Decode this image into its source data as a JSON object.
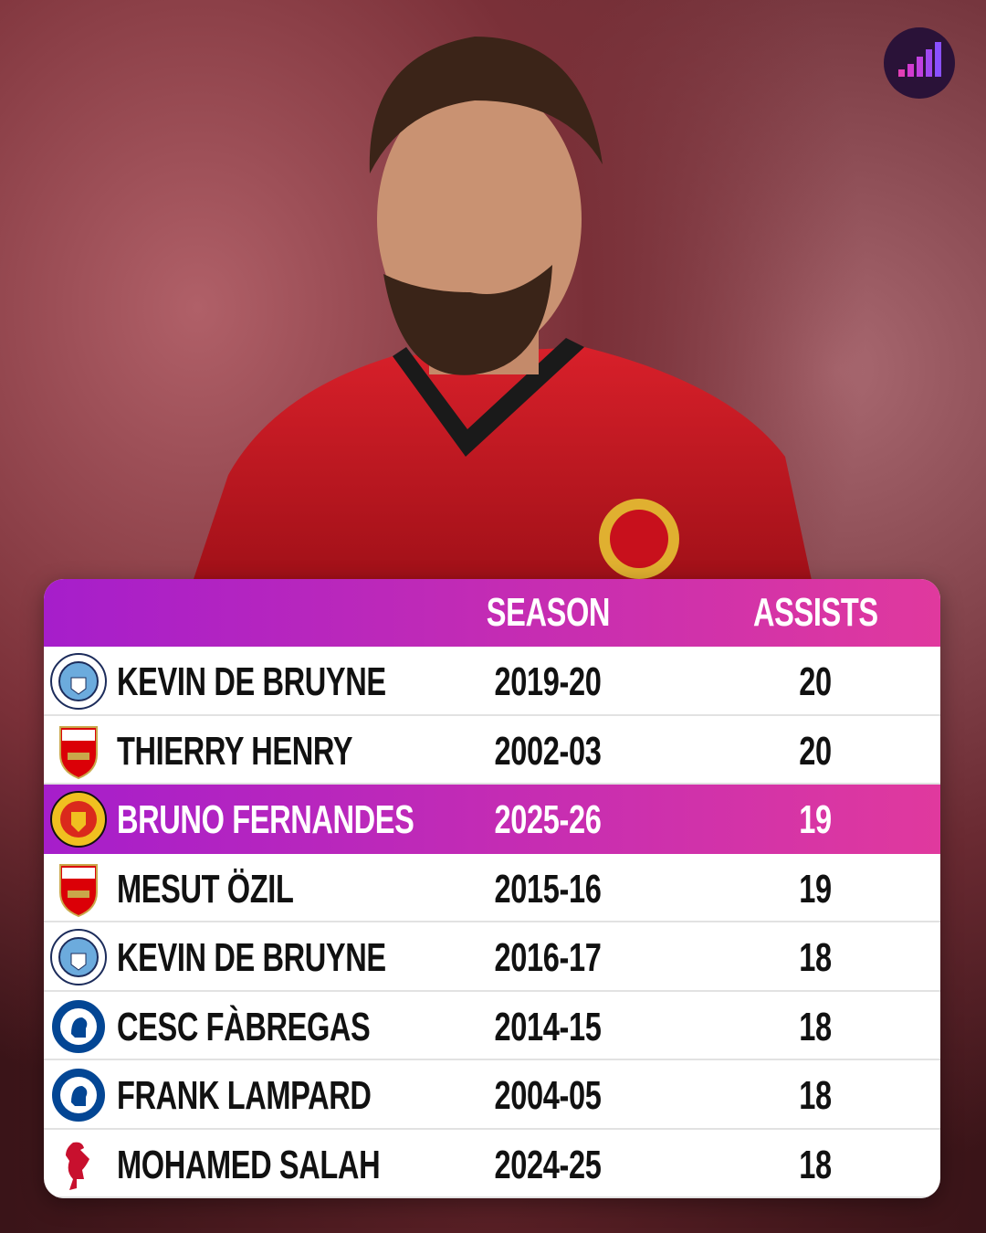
{
  "table": {
    "headers": [
      "SEASON",
      "ASSISTS"
    ],
    "rows": [
      [
        "KEVIN DE BRUYNE",
        "2019-20",
        20
      ],
      [
        "THIERRY HENRY",
        "2002-03",
        20
      ],
      [
        "BRUNO FERNANDES",
        "2025-26",
        19
      ],
      [
        "MESUT ÖZIL",
        "2015-16",
        19
      ],
      [
        "KEVIN DE BRUYNE",
        "2016-17",
        18
      ],
      [
        "CESC FÀBREGAS",
        "2014-15",
        18
      ],
      [
        "FRANK LAMPARD",
        "2004-05",
        18
      ],
      [
        "MOHAMED SALAH",
        "2024-25",
        18
      ]
    ]
  }
}
